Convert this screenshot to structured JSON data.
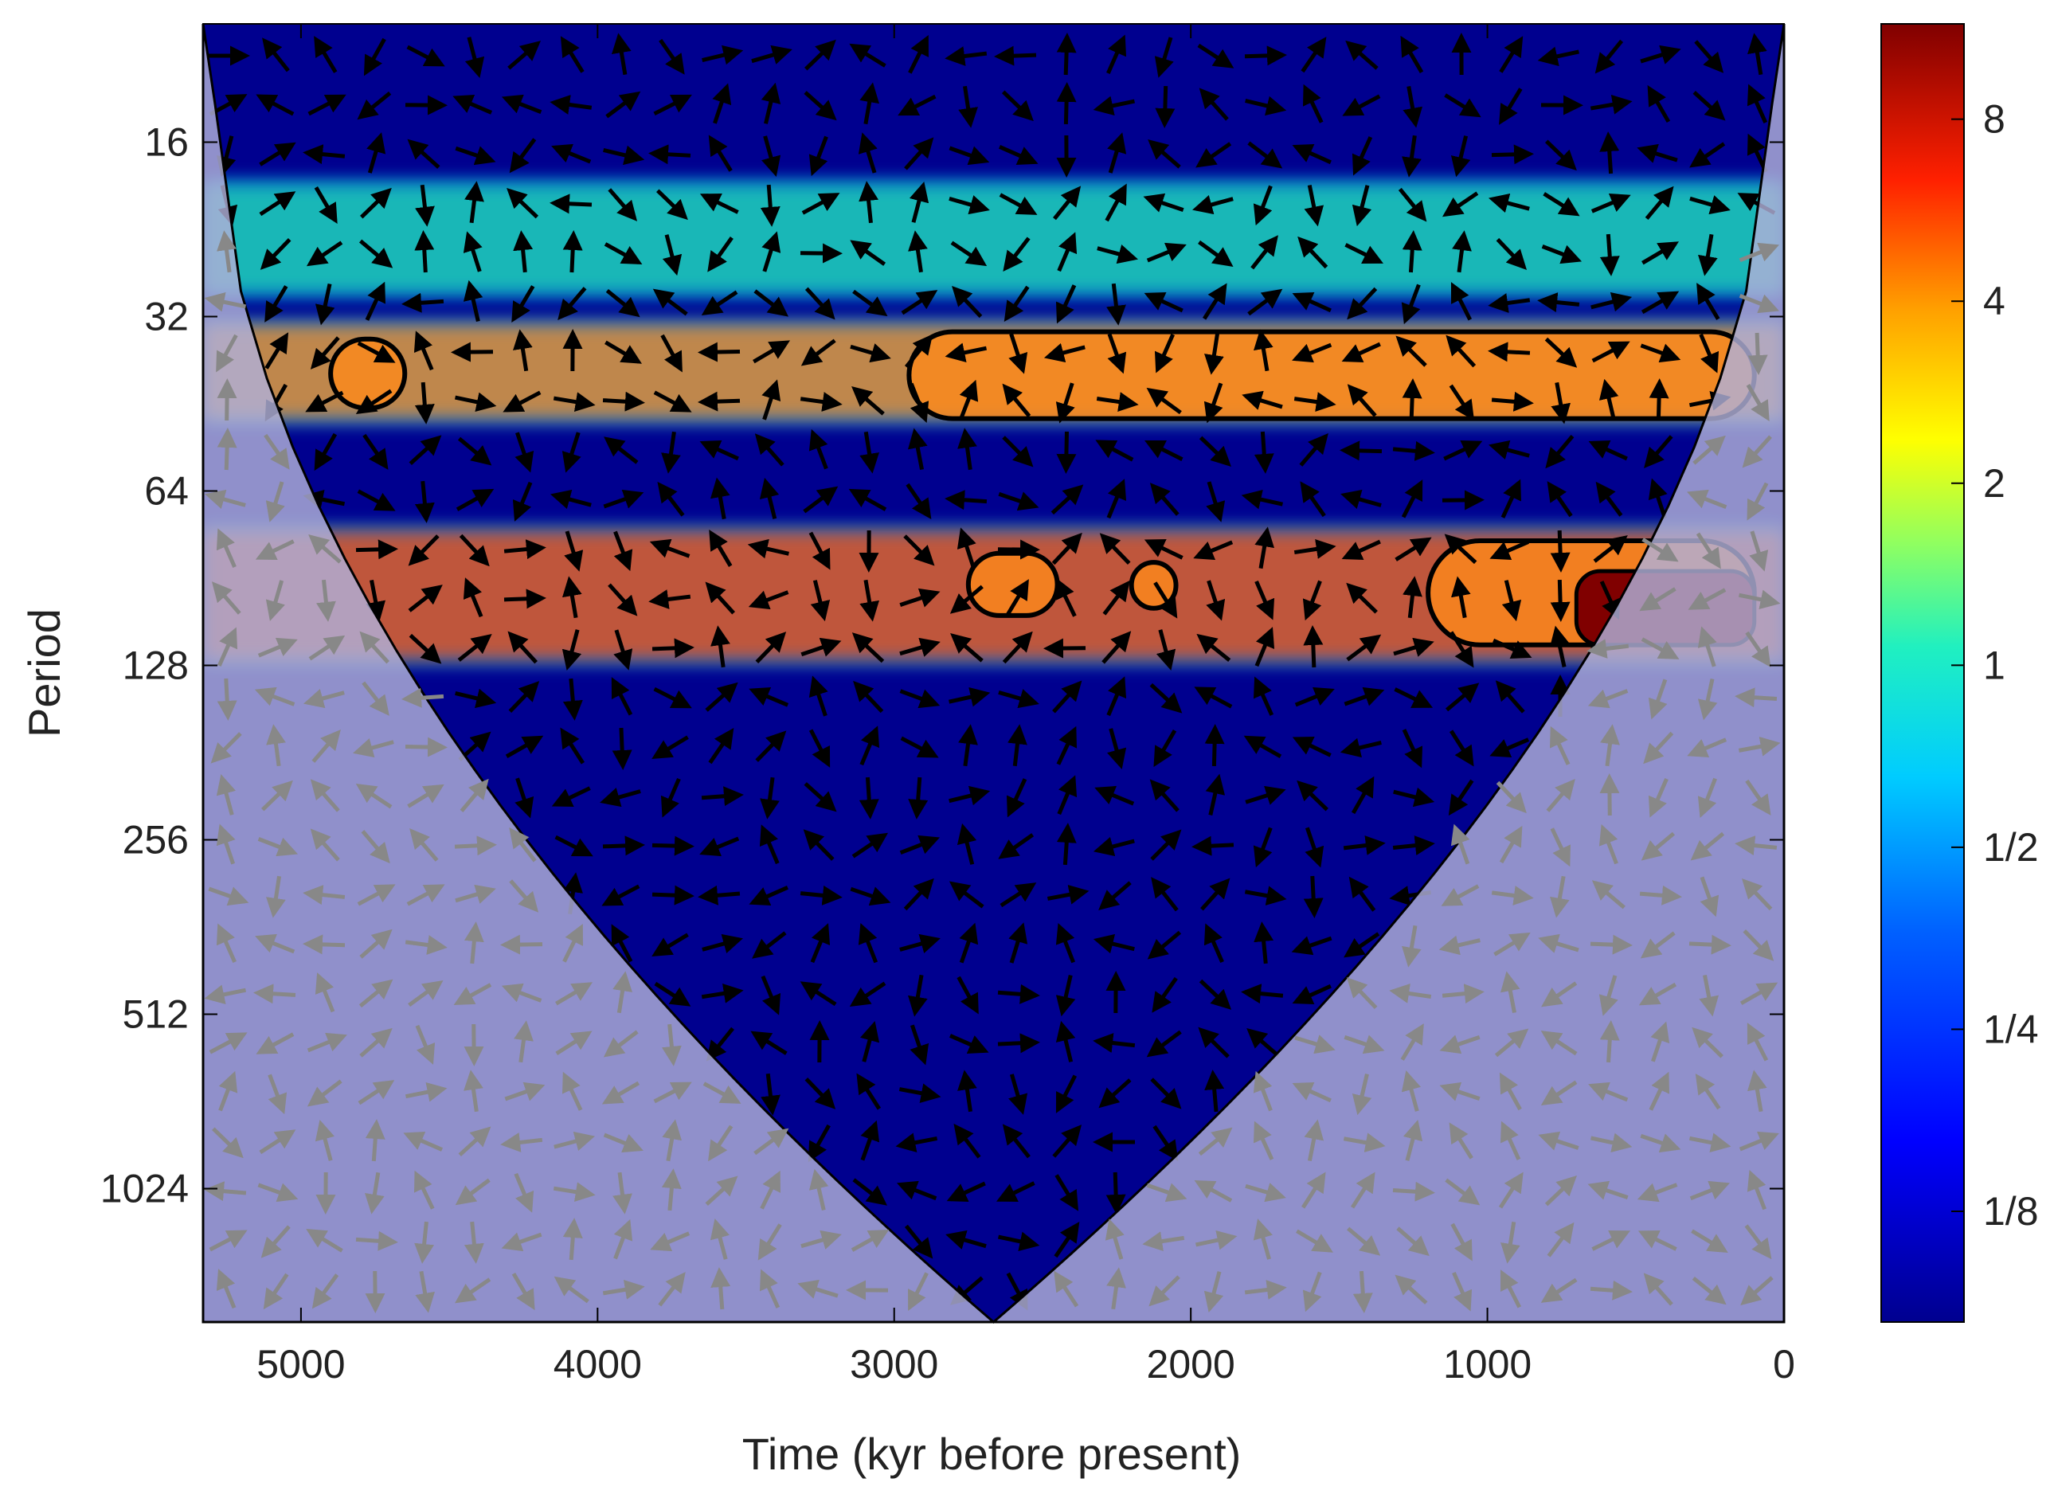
{
  "chart_data": {
    "type": "heatmap",
    "subtype": "wavelet-coherence",
    "title": "",
    "xlabel": "Time (kyr before present)",
    "ylabel": "Period",
    "x_axis": {
      "range": [
        5330,
        0
      ],
      "reversed": true,
      "ticks": [
        5000,
        4000,
        3000,
        2000,
        1000,
        0
      ]
    },
    "y_axis": {
      "scale": "log2",
      "reversed": true,
      "range": [
        10,
        1740
      ],
      "ticks": [
        16,
        32,
        64,
        128,
        256,
        512,
        1024
      ]
    },
    "colorbar": {
      "scale": "log2",
      "range": [
        0.082,
        11.5
      ],
      "ticks": [
        {
          "value": 8,
          "label": "8"
        },
        {
          "value": 4,
          "label": "4"
        },
        {
          "value": 2,
          "label": "2"
        },
        {
          "value": 1,
          "label": "1"
        },
        {
          "value": 0.5,
          "label": "1/2"
        },
        {
          "value": 0.25,
          "label": "1/4"
        },
        {
          "value": 0.125,
          "label": "1/8"
        }
      ],
      "colors": [
        "#00008f",
        "#0000ff",
        "#00a0ff",
        "#00ffff",
        "#80ff80",
        "#ffff00",
        "#ff8000",
        "#ff0000",
        "#800000"
      ]
    },
    "bands": [
      {
        "name": "",
        "period_range": [
          19,
          29
        ],
        "mean_power": 0.9,
        "color": "#20d0b0"
      },
      {
        "name": "",
        "period_range": [
          33,
          48
        ],
        "mean_power": 2.5,
        "color": "#ff9020"
      },
      {
        "name": "",
        "period_range": [
          75,
          125
        ],
        "mean_power": 3.5,
        "color": "#ff5010"
      }
    ],
    "significant_regions": [
      {
        "time_range": [
          4900,
          4650
        ],
        "period_range": [
          35,
          46
        ]
      },
      {
        "time_range": [
          2750,
          2450
        ],
        "period_range": [
          82,
          105
        ]
      },
      {
        "time_range": [
          2200,
          2050
        ],
        "period_range": [
          85,
          102
        ]
      },
      {
        "time_range": [
          2950,
          100
        ],
        "period_range": [
          34,
          48
        ]
      },
      {
        "time_range": [
          1200,
          100
        ],
        "period_range": [
          78,
          118
        ]
      }
    ],
    "strong_maximum": {
      "time_range": [
        700,
        100
      ],
      "period_range": [
        88,
        118
      ],
      "value": 9
    },
    "cone_of_influence": "shaded outside",
    "phase_arrows": true,
    "grid": false,
    "legend": "colorbar-right"
  }
}
